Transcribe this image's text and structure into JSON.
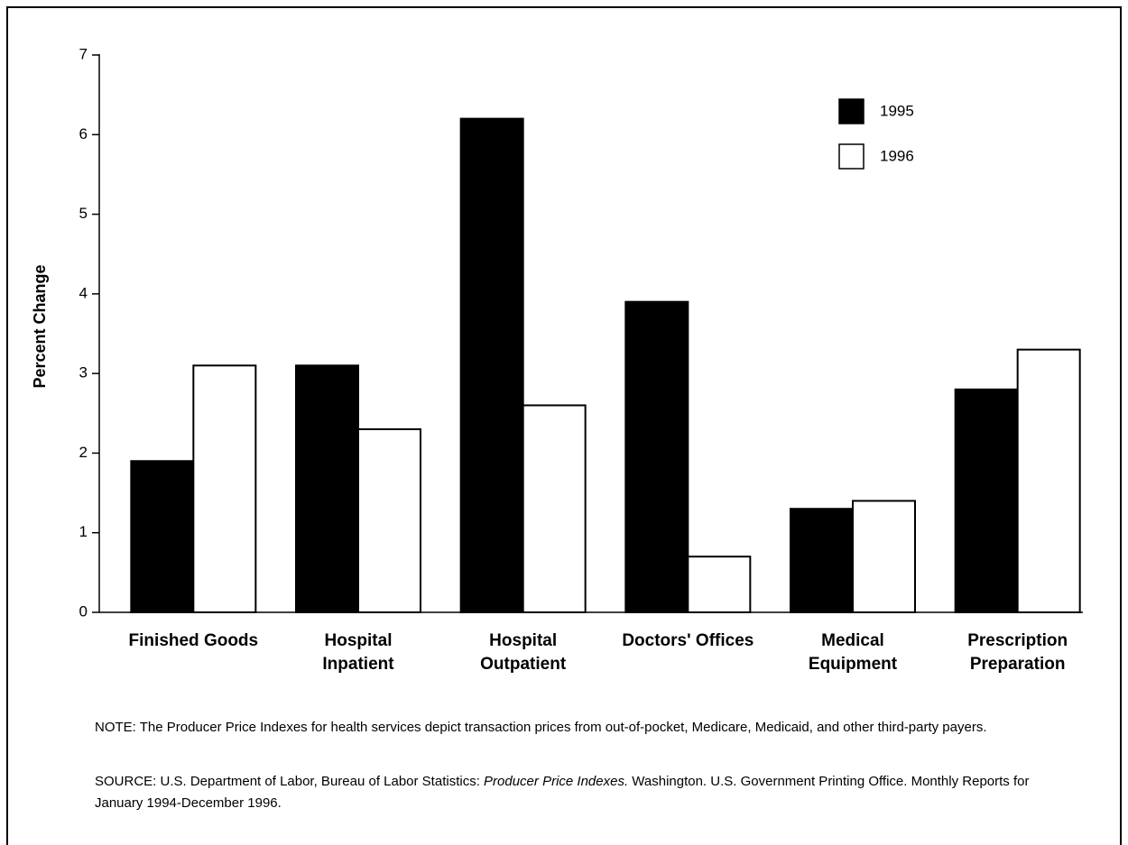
{
  "chart_data": {
    "type": "bar",
    "y_label": "Percent Change",
    "categories": [
      "Finished Goods",
      "Hospital Inpatient",
      "Hospital Outpatient",
      "Doctors' Offices",
      "Medical Equipment",
      "Prescription Preparation"
    ],
    "series": [
      {
        "name": "1995",
        "color": "#000000",
        "values": [
          1.9,
          3.1,
          6.2,
          3.9,
          1.3,
          2.8
        ]
      },
      {
        "name": "1996",
        "color": "#ffffff",
        "values": [
          3.1,
          2.3,
          2.6,
          0.7,
          1.4,
          3.3
        ]
      }
    ],
    "ylim": [
      0,
      7
    ],
    "yticks": [
      0,
      1,
      2,
      3,
      4,
      5,
      6,
      7
    ],
    "note": "NOTE: The Producer Price Indexes for health services depict transaction prices from out-of-pocket, Medicare, Medicaid, and other third-party payers.",
    "source": [
      "SOURCE: U.S. Department of Labor, Bureau of Labor Statistics: ",
      "Producer Price Indexes.",
      " Washington. U.S. Government Printing Office.  Monthly Reports for January 1994-December 1996."
    ]
  }
}
